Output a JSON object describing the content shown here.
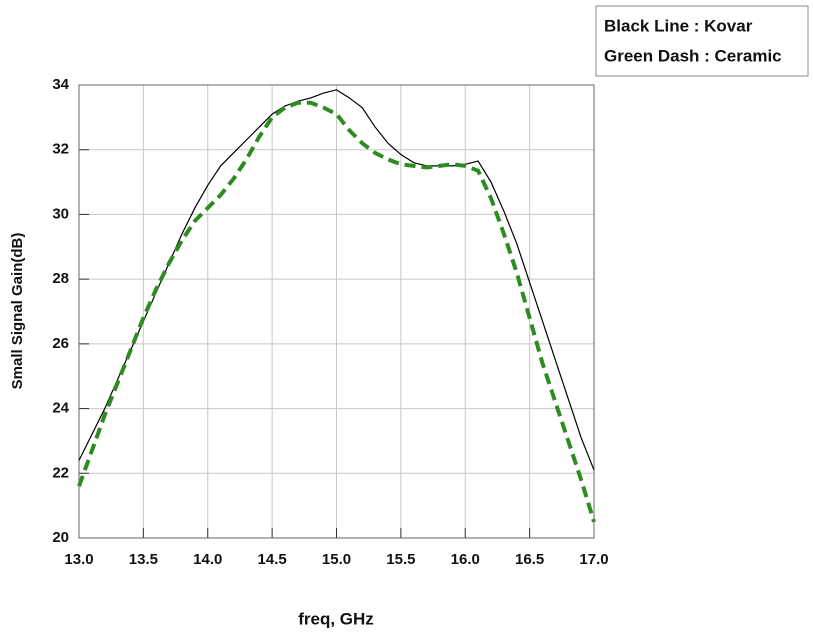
{
  "chart_data": {
    "type": "line",
    "xlabel": "freq, GHz",
    "ylabel": "Small Signal Gain(dB)",
    "x": [
      13.0,
      13.1,
      13.2,
      13.3,
      13.4,
      13.5,
      13.6,
      13.7,
      13.8,
      13.9,
      14.0,
      14.1,
      14.2,
      14.3,
      14.4,
      14.5,
      14.6,
      14.7,
      14.8,
      14.9,
      15.0,
      15.1,
      15.2,
      15.3,
      15.4,
      15.5,
      15.6,
      15.7,
      15.8,
      15.9,
      16.0,
      16.1,
      16.2,
      16.3,
      16.4,
      16.5,
      16.6,
      16.7,
      16.8,
      16.9,
      17.0
    ],
    "series": [
      {
        "name": "Black Line : Kovar",
        "color": "#000000",
        "dash": false,
        "values": [
          22.4,
          23.2,
          24.0,
          24.9,
          25.8,
          26.7,
          27.6,
          28.5,
          29.4,
          30.2,
          30.9,
          31.5,
          31.9,
          32.3,
          32.7,
          33.1,
          33.35,
          33.5,
          33.6,
          33.75,
          33.85,
          33.6,
          33.3,
          32.7,
          32.2,
          31.85,
          31.6,
          31.5,
          31.5,
          31.5,
          31.55,
          31.65,
          31.0,
          30.1,
          29.1,
          27.9,
          26.7,
          25.5,
          24.3,
          23.1,
          22.1
        ]
      },
      {
        "name": "Green Dash : Ceramic",
        "color": "#2e8b22",
        "dash": true,
        "values": [
          21.6,
          22.7,
          23.8,
          24.8,
          25.8,
          26.8,
          27.7,
          28.5,
          29.2,
          29.8,
          30.2,
          30.6,
          31.1,
          31.7,
          32.4,
          33.0,
          33.3,
          33.45,
          33.45,
          33.3,
          33.1,
          32.6,
          32.2,
          31.9,
          31.7,
          31.55,
          31.5,
          31.45,
          31.5,
          31.55,
          31.5,
          31.35,
          30.5,
          29.4,
          28.2,
          26.8,
          25.4,
          24.2,
          23.0,
          21.8,
          20.5
        ]
      }
    ],
    "xlim": [
      13.0,
      17.0
    ],
    "xticks": [
      {
        "value": 13.0,
        "label": "13.0"
      },
      13.5,
      {
        "value": 14.0,
        "label": "14.0"
      },
      14.5,
      {
        "value": 15.0,
        "label": "15.0"
      },
      15.5,
      {
        "value": 16.0,
        "label": "16.0"
      },
      16.5,
      {
        "value": 17.0,
        "label": "17.0"
      }
    ],
    "ylim": [
      20,
      34
    ],
    "yticks": [
      20,
      22,
      24,
      26,
      28,
      30,
      32,
      34
    ],
    "grid": true,
    "legend": "top-right"
  }
}
